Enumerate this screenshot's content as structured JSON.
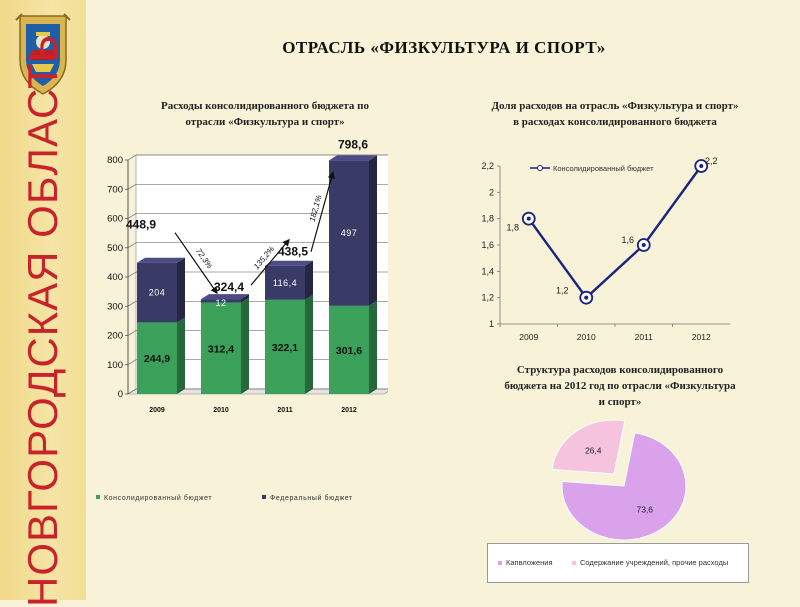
{
  "slide": {
    "title": "ОТРАСЛЬ «ФИЗКУЛЬТУРА И СПОРТ»",
    "region_vertical": "НОВГОРОДСКАЯ ОБЛАСТЬ",
    "emblem_icon": "coat-of-arms-icon",
    "colors": {
      "accent_red": "#c8232a",
      "gold": "#f0d98a",
      "background": "#f7f2d8"
    }
  },
  "chart_data": [
    {
      "type": "bar",
      "stacked": true,
      "title_lines": [
        "Расходы консолидированного бюджета по",
        "отрасли «Физкультура и спорт»"
      ],
      "categories": [
        "2009",
        "2010",
        "2011",
        "2012"
      ],
      "series": [
        {
          "name": "Консолидированный бюджет",
          "values": [
            244.9,
            312.4,
            322.1,
            301.6
          ],
          "labels": [
            "244,9",
            "312,4",
            "322,1",
            "301,6"
          ],
          "color": "#3aa05a"
        },
        {
          "name": "Федеральный бюджет",
          "values": [
            204,
            12,
            116.4,
            497
          ],
          "labels": [
            "204",
            "12",
            "116,4",
            "497"
          ],
          "color": "#3a3a66"
        }
      ],
      "totals": [
        "448,9",
        "324,4",
        "438,5",
        "798,6"
      ],
      "growth_labels": [
        "72,3%",
        "135,2%",
        "182,1%"
      ],
      "y_ticks": [
        "0",
        "100",
        "200",
        "300",
        "400",
        "500",
        "600",
        "700",
        "800"
      ],
      "ylim": [
        0,
        800
      ],
      "grid": true,
      "legend": "bottom"
    },
    {
      "type": "line",
      "title_lines": [
        "Доля расходов на отрасль «Физкультура и спорт»",
        "в расходах консолидированного бюджета"
      ],
      "x": [
        "2009",
        "2010",
        "2011",
        "2012"
      ],
      "series": [
        {
          "name": "Консолидированный бюджет",
          "values": [
            1.8,
            1.2,
            1.6,
            2.2
          ],
          "labels": [
            "1,8",
            "1,2",
            "1,6",
            "2,2"
          ],
          "color": "#1a237e"
        }
      ],
      "y_ticks": [
        "1",
        "1,2",
        "1,4",
        "1,6",
        "1,8",
        "2",
        "2,2"
      ],
      "ylim": [
        1,
        2.2
      ],
      "grid": false,
      "legend": "top"
    },
    {
      "type": "pie",
      "title_lines": [
        "Структура расходов консолидированного",
        "бюджета на 2012 год по отрасли «Физкультура",
        "и спорт»"
      ],
      "slices": [
        {
          "name": "Капвложения",
          "value": 73.6,
          "label": "73,6",
          "color": "#d9a2ea"
        },
        {
          "name": "Содержание учреждений, прочие расходы",
          "value": 26.4,
          "label": "26,4",
          "color": "#f6c3df"
        }
      ],
      "legend": "bottom"
    }
  ]
}
